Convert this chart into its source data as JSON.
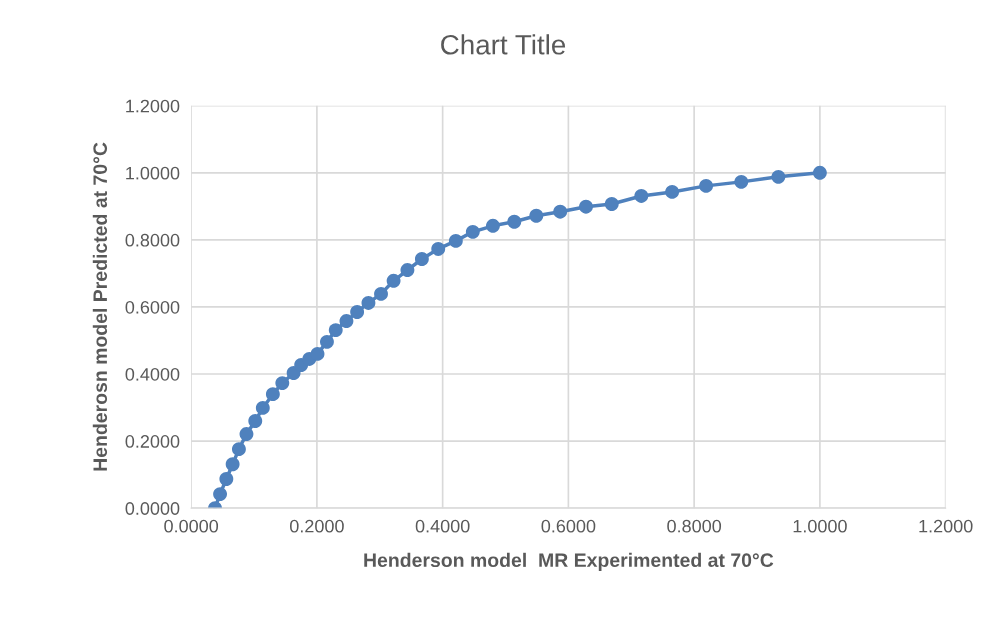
{
  "chart_data": {
    "type": "line",
    "title": "Chart Title",
    "xlabel": "Henderson model  MR Experimented at 70°C",
    "ylabel": "Henderosn model Predicted at 70°C",
    "series": [
      {
        "color": "#4f81bd",
        "x": [
          0.038,
          0.046,
          0.056,
          0.066,
          0.076,
          0.088,
          0.102,
          0.114,
          0.13,
          0.145,
          0.163,
          0.175,
          0.188,
          0.201,
          0.216,
          0.23,
          0.247,
          0.264,
          0.282,
          0.302,
          0.322,
          0.344,
          0.367,
          0.393,
          0.421,
          0.448,
          0.48,
          0.514,
          0.549,
          0.587,
          0.628,
          0.669,
          0.716,
          0.765,
          0.819,
          0.875,
          0.934,
          1.0
        ],
        "values": [
          0.0,
          0.042,
          0.087,
          0.131,
          0.176,
          0.221,
          0.26,
          0.299,
          0.34,
          0.373,
          0.403,
          0.427,
          0.445,
          0.46,
          0.496,
          0.531,
          0.558,
          0.585,
          0.612,
          0.639,
          0.678,
          0.71,
          0.743,
          0.773,
          0.797,
          0.824,
          0.842,
          0.854,
          0.872,
          0.884,
          0.899,
          0.907,
          0.931,
          0.943,
          0.961,
          0.973,
          0.988,
          1.0
        ]
      }
    ],
    "xlim": [
      0,
      1.2
    ],
    "ylim": [
      0,
      1.2
    ],
    "xticks": [
      {
        "value": 0,
        "label": "0.0000"
      },
      {
        "value": 0.2,
        "label": "0.2000"
      },
      {
        "value": 0.4,
        "label": "0.4000"
      },
      {
        "value": 0.6,
        "label": "0.6000"
      },
      {
        "value": 0.8,
        "label": "0.8000"
      },
      {
        "value": 1.0,
        "label": "1.0000"
      },
      {
        "value": 1.2,
        "label": "1.2000"
      }
    ],
    "yticks": [
      {
        "value": 0,
        "label": "0.0000"
      },
      {
        "value": 0.2,
        "label": "0.2000"
      },
      {
        "value": 0.4,
        "label": "0.4000"
      },
      {
        "value": 0.6,
        "label": "0.6000"
      },
      {
        "value": 0.8,
        "label": "0.8000"
      },
      {
        "value": 1.0,
        "label": "1.0000"
      },
      {
        "value": 1.2,
        "label": "1.2000"
      }
    ],
    "grid": true,
    "marker": "circle",
    "line_style": "solid"
  }
}
